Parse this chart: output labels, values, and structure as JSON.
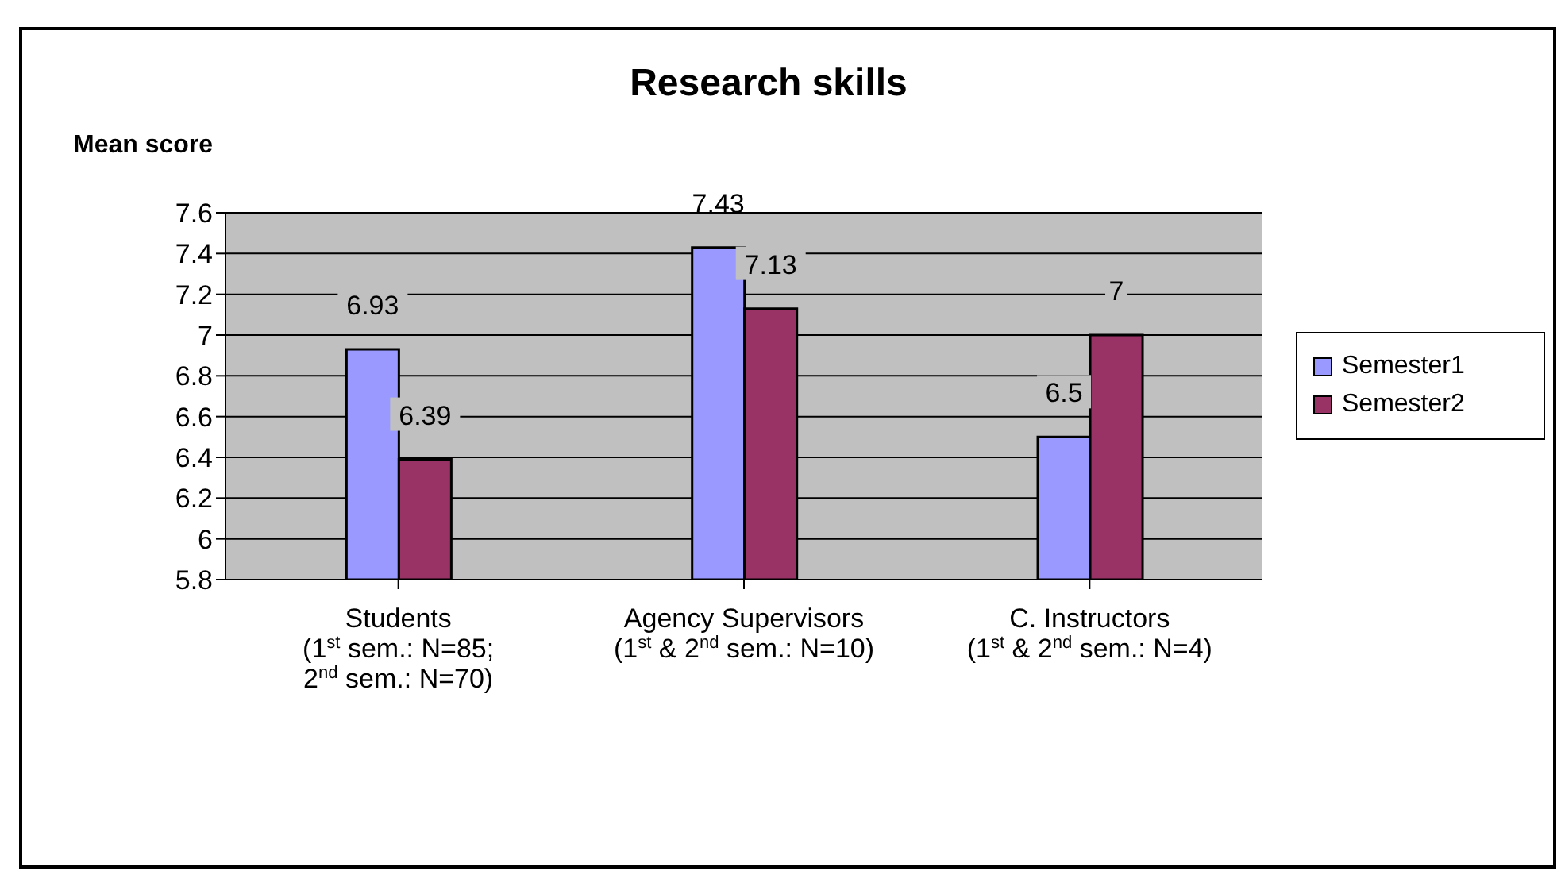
{
  "chart_data": {
    "type": "bar",
    "title": "Research skills",
    "ylabel": "Mean score",
    "categories": [
      "Students\n(1$^{st}$ sem.: N=85;\n2$^{nd}$ sem.: N=70)",
      "Agency Supervisors\n(1$^{st}$ & 2$^{nd}$ sem.: N=10)",
      "C. Instructors\n(1$^{st}$ & 2$^{nd}$ sem.: N=4)"
    ],
    "series": [
      {
        "name": "Semester1",
        "color": "#9999ff",
        "values": [
          6.93,
          7.43,
          6.5
        ]
      },
      {
        "name": "Semester2",
        "color": "#993366",
        "values": [
          6.39,
          7.13,
          7
        ]
      }
    ],
    "ylim": [
      5.8,
      7.6
    ],
    "yticks": [
      5.8,
      6,
      6.2,
      6.4,
      6.6,
      6.8,
      7,
      7.2,
      7.4,
      7.6
    ],
    "grid": "y",
    "legend": "right",
    "data_labels": true
  }
}
